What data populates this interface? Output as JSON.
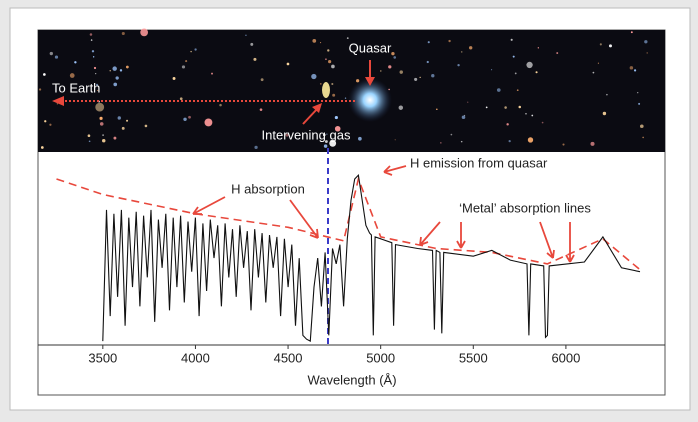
{
  "chart_data": {
    "type": "line",
    "xlabel": "Wavelength (Å)",
    "xlim": [
      3150,
      6535
    ],
    "ylim": [
      0,
      100
    ],
    "xticks": [
      3500,
      4000,
      4500,
      5000,
      5500,
      6000
    ],
    "annotations": [
      "Quasar",
      "To Earth",
      "Intervening gas",
      "H absorption",
      "H emission from quasar",
      "‘Metal’ absorption lines"
    ],
    "series": [
      {
        "color": "#e8483c",
        "dashed": true,
        "x": [
          3250,
          3500,
          4000,
          4500,
          4800,
          4880,
          5000,
          5300,
          5600,
          5900,
          6200,
          6400
        ],
        "values": [
          86,
          78,
          68,
          61,
          54,
          86,
          56,
          50,
          48,
          42,
          55,
          39
        ]
      },
      {
        "color": "#111111",
        "dashed": false,
        "x": [
          3500,
          3520,
          3540,
          3560,
          3580,
          3600,
          3620,
          3640,
          3660,
          3680,
          3700,
          3720,
          3740,
          3760,
          3780,
          3800,
          3820,
          3840,
          3860,
          3880,
          3900,
          3920,
          3940,
          3960,
          3980,
          4000,
          4020,
          4040,
          4060,
          4080,
          4100,
          4120,
          4140,
          4160,
          4180,
          4200,
          4220,
          4240,
          4260,
          4280,
          4300,
          4320,
          4340,
          4360,
          4380,
          4400,
          4420,
          4440,
          4460,
          4480,
          4500,
          4520,
          4540,
          4560,
          4580,
          4600,
          4620,
          4640,
          4660,
          4680,
          4700,
          4720,
          4740,
          4760,
          4780,
          4800,
          4820,
          4840,
          4860,
          4880,
          4900,
          4920,
          4940,
          4950,
          4960,
          4970,
          5000,
          5060,
          5070,
          5080,
          5200,
          5280,
          5290,
          5300,
          5320,
          5330,
          5340,
          5500,
          5600,
          5700,
          5790,
          5800,
          5810,
          5880,
          5890,
          5900,
          5910,
          6100,
          6200,
          6300,
          6400
        ],
        "values": [
          2,
          70,
          15,
          68,
          25,
          70,
          10,
          66,
          30,
          69,
          20,
          67,
          35,
          70,
          12,
          65,
          40,
          68,
          18,
          66,
          30,
          67,
          22,
          64,
          38,
          66,
          15,
          63,
          28,
          65,
          45,
          62,
          20,
          63,
          35,
          60,
          25,
          62,
          40,
          59,
          18,
          60,
          35,
          58,
          22,
          57,
          40,
          56,
          15,
          55,
          30,
          52,
          10,
          45,
          5,
          3,
          2,
          30,
          45,
          20,
          48,
          5,
          50,
          42,
          52,
          20,
          55,
          75,
          86,
          88,
          75,
          62,
          58,
          57,
          5,
          56,
          55,
          53,
          10,
          52,
          50,
          49,
          8,
          49,
          48,
          6,
          48,
          46,
          49,
          44,
          42,
          5,
          42,
          41,
          4,
          5,
          41,
          43,
          56,
          40,
          38
        ]
      }
    ]
  }
}
